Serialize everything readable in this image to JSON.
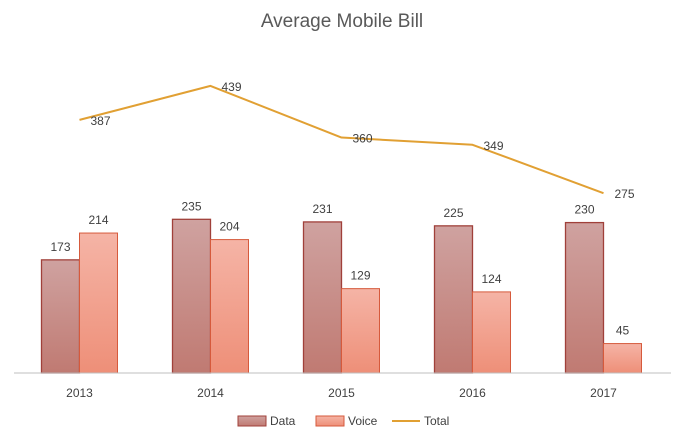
{
  "chart_data": {
    "type": "bar",
    "title": "Average Mobile Bill",
    "categories": [
      "2013",
      "2014",
      "2015",
      "2016",
      "2017"
    ],
    "series": [
      {
        "name": "Data",
        "type": "bar",
        "values": [
          173,
          235,
          231,
          225,
          230
        ]
      },
      {
        "name": "Voice",
        "type": "bar",
        "values": [
          214,
          204,
          129,
          124,
          45
        ]
      },
      {
        "name": "Total",
        "type": "line",
        "values": [
          387,
          439,
          360,
          349,
          275
        ]
      }
    ],
    "ylim": [
      0,
      500
    ],
    "grid": false,
    "legend_position": "bottom",
    "colors": {
      "Data": "#c8908c",
      "Data_border": "#a0403a",
      "Voice": "#f1a493",
      "Voice_border": "#d65a3c",
      "Total": "#e1a033",
      "axis": "#bfbfbf"
    }
  }
}
